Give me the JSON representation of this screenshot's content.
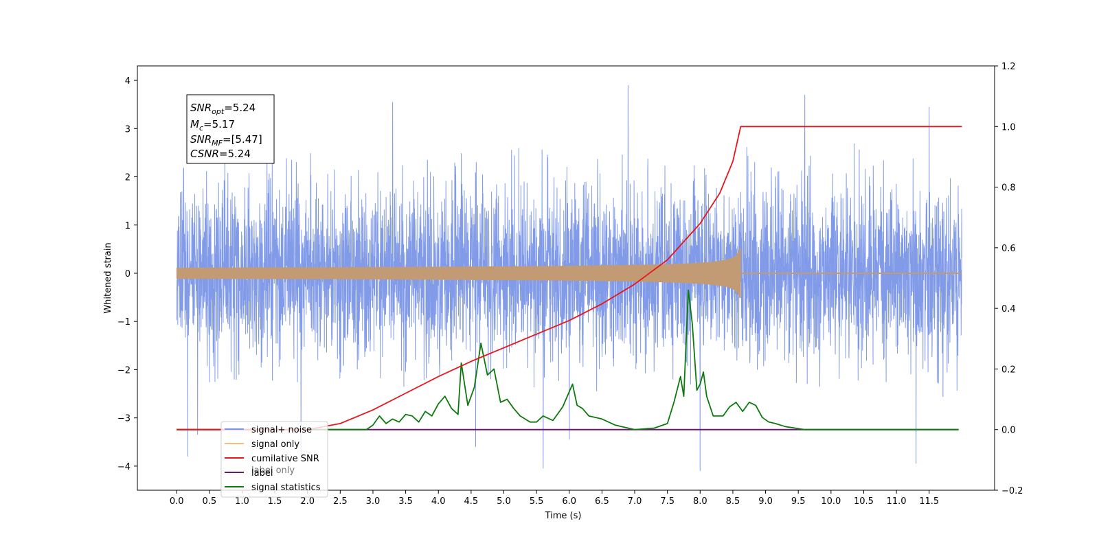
{
  "chart_data": {
    "type": "line",
    "xlabel": "Time (s)",
    "ylabel": "Whitened strain",
    "xlim": [
      -0.6,
      12.5
    ],
    "ylim_left": [
      -4.5,
      4.3
    ],
    "ylim_right": [
      -0.2,
      1.2
    ],
    "x_ticks": [
      "0.0",
      "0.5",
      "1.0",
      "1.5",
      "2.0",
      "2.5",
      "3.0",
      "3.5",
      "4.0",
      "4.5",
      "5.0",
      "5.5",
      "6.0",
      "6.5",
      "7.0",
      "7.5",
      "8.0",
      "8.5",
      "9.0",
      "9.5",
      "10.0",
      "10.5",
      "11.0",
      "11.5"
    ],
    "y_ticks_left": [
      "4",
      "3",
      "2",
      "1",
      "0",
      "−1",
      "−2",
      "−3",
      "−4"
    ],
    "y_ticks_right": [
      "1.2",
      "1.0",
      "0.8",
      "0.6",
      "0.4",
      "0.2",
      "0.0",
      "−0.2"
    ],
    "annotation": {
      "snr_opt": {
        "name": "SNR",
        "sub": "opt",
        "value": "=5.24"
      },
      "mc": {
        "name": "M",
        "sub": "c",
        "value": "=5.17"
      },
      "snr_mf": {
        "name": "SNR",
        "sub": "MF",
        "value": "=[5.47]"
      },
      "csnr": {
        "name": "CSNR",
        "sub": "",
        "value": "=5.24"
      }
    },
    "legend": {
      "position": "lower-left",
      "entries": [
        {
          "label": "signal+ noise",
          "color": "#7b96e8"
        },
        {
          "label": "signal only",
          "color": "#f5c07a"
        },
        {
          "label": "cumilative SNR",
          "color": "#e8161a"
        },
        {
          "label": "label",
          "color": "#6b1a6b"
        },
        {
          "label": "signal statistics",
          "color": "#0b7a0b"
        }
      ],
      "hidden_text": "label only"
    },
    "series": [
      {
        "name": "signal+ noise",
        "axis": "left",
        "color": "#7b96e8",
        "x_range": [
          0.0,
          12.0
        ],
        "typical_range": [
          -2.2,
          2.4
        ],
        "extremes": [
          [
            0.17,
            -3.8
          ],
          [
            0.32,
            -3.35
          ],
          [
            1.9,
            -3.8
          ],
          [
            3.3,
            3.55
          ],
          [
            4.57,
            -3.6
          ],
          [
            5.6,
            -4.05
          ],
          [
            6.0,
            -3.45
          ],
          [
            6.9,
            3.9
          ],
          [
            8.0,
            -4.1
          ],
          [
            9.6,
            3.7
          ],
          [
            11.3,
            -3.95
          ],
          [
            11.5,
            3.45
          ]
        ]
      },
      {
        "name": "signal only",
        "axis": "left",
        "color": "#c29b74",
        "x_range": [
          0.0,
          12.0
        ],
        "merger_time": 8.62,
        "peak_amplitude": 0.52
      },
      {
        "name": "cumilative SNR",
        "axis": "right",
        "color": "#e8161a",
        "x": [
          0.0,
          1.0,
          2.0,
          2.5,
          3.0,
          3.5,
          4.0,
          4.5,
          5.0,
          5.5,
          6.0,
          6.5,
          7.0,
          7.5,
          8.0,
          8.3,
          8.5,
          8.62,
          12.0
        ],
        "y": [
          0.0,
          0.0,
          0.0,
          0.02,
          0.065,
          0.12,
          0.175,
          0.225,
          0.27,
          0.315,
          0.36,
          0.415,
          0.48,
          0.56,
          0.68,
          0.78,
          0.885,
          1.0,
          1.0
        ]
      },
      {
        "name": "label",
        "axis": "right",
        "color": "#6b1a6b",
        "x": [
          0.0,
          11.95
        ],
        "y": [
          0.0,
          0.0
        ]
      },
      {
        "name": "signal statistics",
        "axis": "right",
        "color": "#0b7a0b",
        "x": [
          0.0,
          2.9,
          3.0,
          3.1,
          3.2,
          3.3,
          3.4,
          3.5,
          3.6,
          3.7,
          3.8,
          3.9,
          4.0,
          4.1,
          4.2,
          4.3,
          4.35,
          4.45,
          4.55,
          4.65,
          4.75,
          4.85,
          4.95,
          5.05,
          5.15,
          5.25,
          5.4,
          5.5,
          5.6,
          5.75,
          5.9,
          6.05,
          6.12,
          6.2,
          6.3,
          6.5,
          6.7,
          7.0,
          7.3,
          7.5,
          7.6,
          7.7,
          7.75,
          7.82,
          7.88,
          7.95,
          8.0,
          8.05,
          8.1,
          8.2,
          8.35,
          8.45,
          8.55,
          8.65,
          8.75,
          8.85,
          8.95,
          9.05,
          9.15,
          9.3,
          9.45,
          9.6,
          9.8,
          10.5,
          11.95
        ],
        "y": [
          0.0,
          0.0,
          0.015,
          0.045,
          0.02,
          0.035,
          0.025,
          0.05,
          0.045,
          0.025,
          0.06,
          0.045,
          0.085,
          0.11,
          0.07,
          0.05,
          0.22,
          0.08,
          0.14,
          0.285,
          0.18,
          0.2,
          0.09,
          0.1,
          0.07,
          0.045,
          0.025,
          0.025,
          0.045,
          0.03,
          0.075,
          0.15,
          0.08,
          0.07,
          0.045,
          0.035,
          0.015,
          0.0,
          0.005,
          0.02,
          0.09,
          0.175,
          0.11,
          0.46,
          0.35,
          0.13,
          0.15,
          0.19,
          0.11,
          0.045,
          0.045,
          0.075,
          0.09,
          0.06,
          0.09,
          0.08,
          0.04,
          0.025,
          0.02,
          0.01,
          0.005,
          0.0,
          0.0,
          0.0,
          0.0
        ]
      }
    ]
  }
}
